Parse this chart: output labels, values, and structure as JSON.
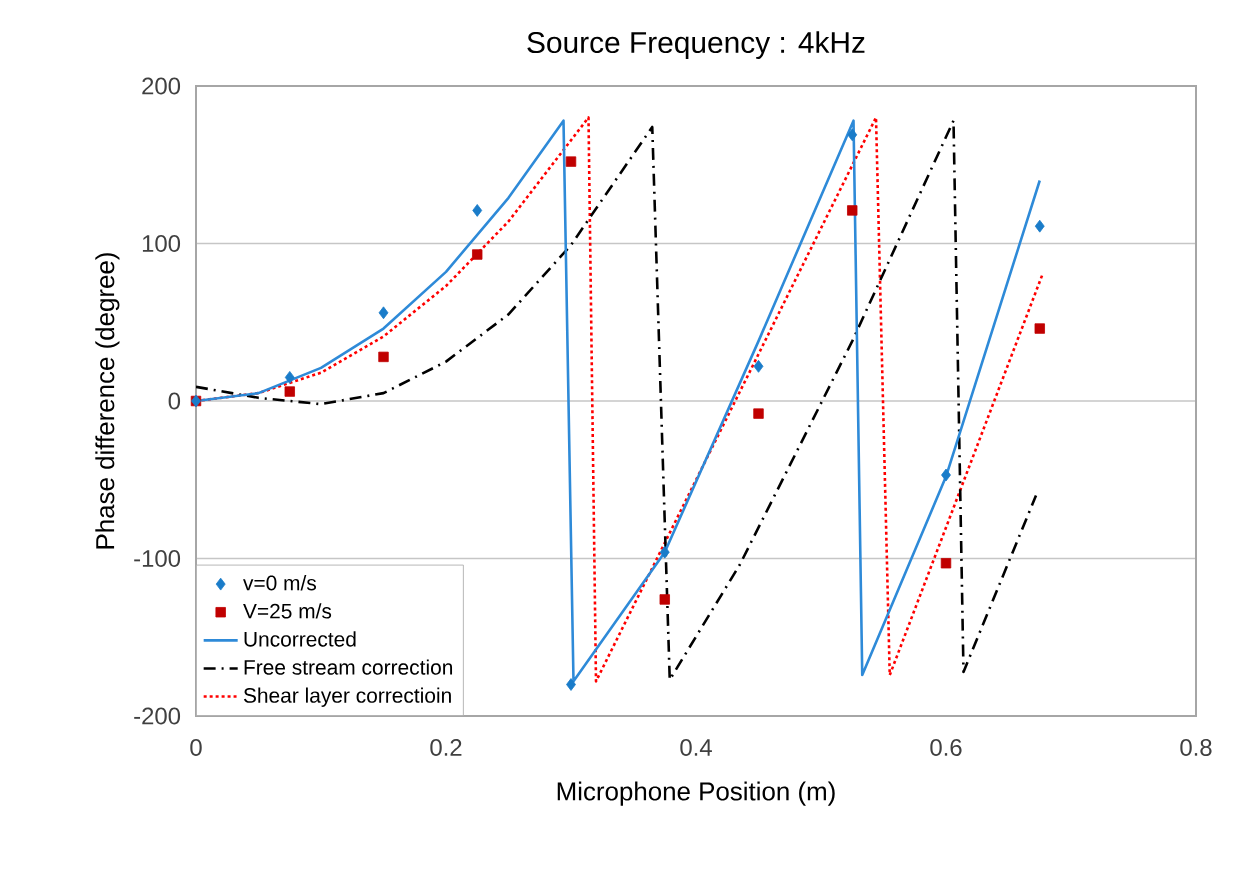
{
  "chart_data": {
    "type": "line",
    "title": "Source Frequency : 4kHz",
    "xlabel": "Microphone Position (m)",
    "ylabel": "Phase difference (degree)",
    "xlim": [
      0,
      0.8
    ],
    "xticks": [
      0,
      0.2,
      0.4,
      0.6,
      0.8
    ],
    "ylim": [
      -200,
      200
    ],
    "yticks": [
      -200,
      -100,
      0,
      100,
      200
    ],
    "grid": "y",
    "legend": "bottom left",
    "series": [
      {
        "name": "v=0 m/s",
        "type": "scatter",
        "marker": "diamond",
        "color": "#1a7cc9",
        "x": [
          0,
          0.075,
          0.15,
          0.225,
          0.3,
          0.375,
          0.45,
          0.525,
          0.6,
          0.675
        ],
        "values": [
          0,
          15,
          56,
          121,
          -180,
          -96,
          22,
          169,
          -47,
          111
        ]
      },
      {
        "name": "V=25 m/s",
        "type": "scatter",
        "marker": "square",
        "color": "#c00000",
        "x": [
          0,
          0.075,
          0.15,
          0.225,
          0.3,
          0.375,
          0.45,
          0.525,
          0.6,
          0.675
        ],
        "values": [
          0,
          6,
          28,
          93,
          152,
          -126,
          -8,
          121,
          -103,
          46
        ]
      },
      {
        "name": "Uncorrected",
        "type": "line",
        "line_style": "solid",
        "color": "#2e8ad8",
        "x": [
          0,
          0.05,
          0.1,
          0.15,
          0.2,
          0.25,
          0.294,
          0.302,
          0.375,
          0.45,
          0.526,
          0.533,
          0.6,
          0.675
        ],
        "values": [
          0,
          5,
          21,
          46,
          82,
          129,
          178,
          -178,
          -96,
          38,
          178,
          -174,
          -48,
          140
        ]
      },
      {
        "name": "Free stream correction",
        "type": "line",
        "line_style": "dashdot",
        "color": "#000000",
        "x": [
          0,
          0.05,
          0.1,
          0.15,
          0.2,
          0.25,
          0.3,
          0.365,
          0.379,
          0.435,
          0.525,
          0.606,
          0.614,
          0.672
        ],
        "values": [
          9,
          2,
          -2,
          5,
          25,
          55,
          99,
          174,
          -177,
          -104,
          38,
          178,
          -172,
          -60
        ]
      },
      {
        "name": "Shear layer correctioin",
        "type": "line",
        "line_style": "dotted",
        "color": "#ff0000",
        "x": [
          0,
          0.05,
          0.1,
          0.15,
          0.2,
          0.25,
          0.314,
          0.32,
          0.544,
          0.555,
          0.677
        ],
        "values": [
          0,
          5,
          18,
          41,
          73,
          114,
          180,
          -178,
          180,
          -174,
          80
        ]
      }
    ]
  }
}
